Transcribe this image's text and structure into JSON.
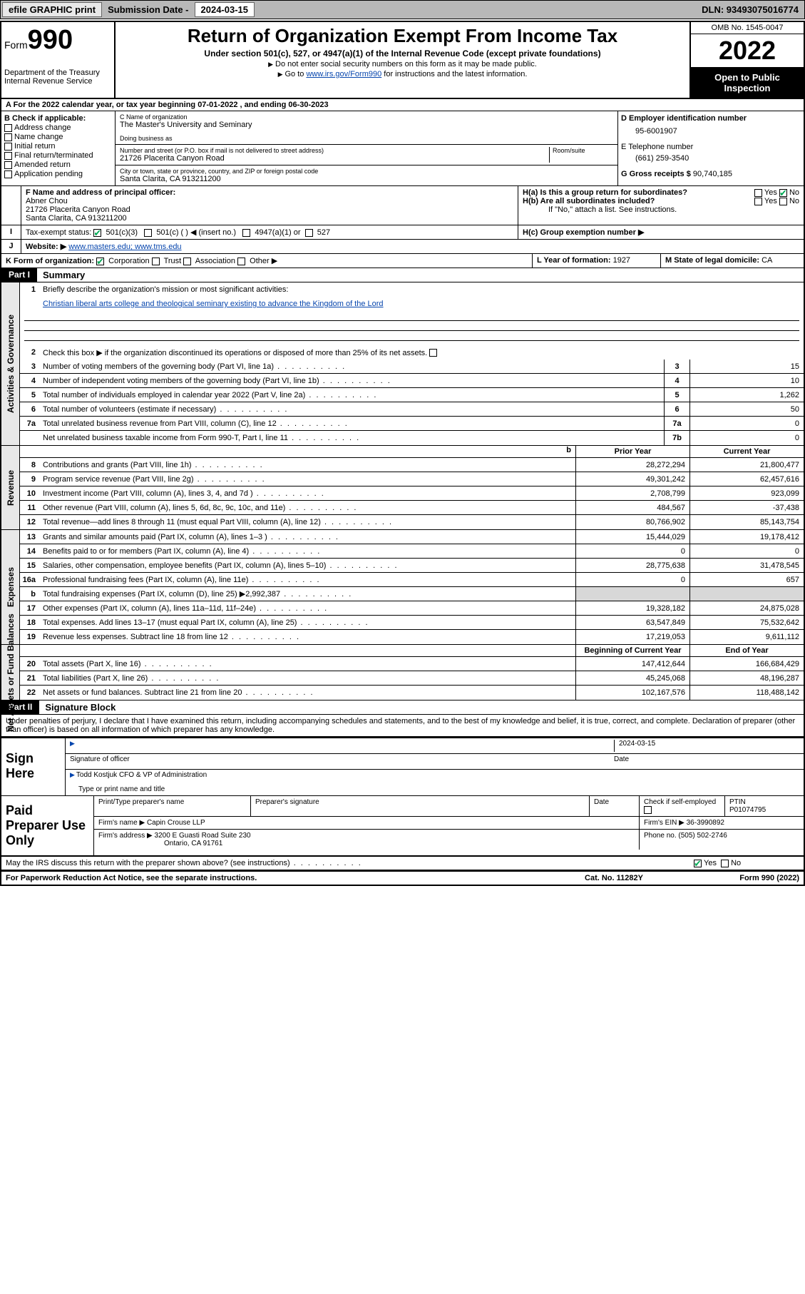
{
  "topbar": {
    "efile": "efile GRAPHIC print",
    "sub_label": "Submission Date - ",
    "sub_date": "2024-03-15",
    "dln": "DLN: 93493075016774"
  },
  "header": {
    "form_word": "Form",
    "form_num": "990",
    "dept": "Department of the Treasury",
    "irs": "Internal Revenue Service",
    "title": "Return of Organization Exempt From Income Tax",
    "subtitle": "Under section 501(c), 527, or 4947(a)(1) of the Internal Revenue Code (except private foundations)",
    "instr1": "Do not enter social security numbers on this form as it may be made public.",
    "instr2_pre": "Go to ",
    "instr2_link": "www.irs.gov/Form990",
    "instr2_post": " for instructions and the latest information.",
    "omb": "OMB No. 1545-0047",
    "year": "2022",
    "open": "Open to Public Inspection"
  },
  "rowA": "A For the 2022 calendar year, or tax year beginning 07-01-2022    , and ending 06-30-2023",
  "B": {
    "hdr": "B Check if applicable:",
    "items": [
      "Address change",
      "Name change",
      "Initial return",
      "Final return/terminated",
      "Amended return",
      "Application pending"
    ]
  },
  "C": {
    "name_lbl": "C Name of organization",
    "name": "The Master's University and Seminary",
    "dba_lbl": "Doing business as",
    "street_lbl": "Number and street (or P.O. box if mail is not delivered to street address)",
    "room_lbl": "Room/suite",
    "street": "21726 Placerita Canyon Road",
    "city_lbl": "City or town, state or province, country, and ZIP or foreign postal code",
    "city": "Santa Clarita, CA  913211200"
  },
  "D": {
    "lbl": "D Employer identification number",
    "val": "95-6001907"
  },
  "E": {
    "lbl": "E Telephone number",
    "val": "(661) 259-3540"
  },
  "G": {
    "lbl": "G Gross receipts $",
    "val": "90,740,185"
  },
  "F": {
    "lbl": "F  Name and address of principal officer:",
    "name": "Abner Chou",
    "addr1": "21726 Placerita Canyon Road",
    "addr2": "Santa Clarita, CA  913211200"
  },
  "H": {
    "a": "H(a)  Is this a group return for subordinates?",
    "b": "H(b)  Are all subordinates included?",
    "b_note": "If \"No,\" attach a list. See instructions.",
    "c": "H(c)  Group exemption number ▶",
    "yes": "Yes",
    "no": "No"
  },
  "I": {
    "lbl": "Tax-exempt status:",
    "o1": "501(c)(3)",
    "o2": "501(c) (  ) ◀ (insert no.)",
    "o3": "4947(a)(1) or",
    "o4": "527"
  },
  "J": {
    "lbl": "Website: ▶",
    "val": "www.masters.edu; www.tms.edu"
  },
  "K": {
    "lbl": "K Form of organization:",
    "o1": "Corporation",
    "o2": "Trust",
    "o3": "Association",
    "o4": "Other ▶"
  },
  "L": {
    "lbl": "L Year of formation:",
    "val": "1927"
  },
  "M": {
    "lbl": "M State of legal domicile:",
    "val": "CA"
  },
  "part1": {
    "hdr": "Part I",
    "title": "Summary",
    "l1_lbl": "Briefly describe the organization's mission or most significant activities:",
    "l1_txt": "Christian liberal arts college and theological seminary existing to advance the Kingdom of the Lord",
    "l2": "Check this box ▶        if the organization discontinued its operations or disposed of more than 25% of its net assets.",
    "rows_ag": [
      {
        "n": "3",
        "t": "Number of voting members of the governing body (Part VI, line 1a)",
        "b": "3",
        "v": "15"
      },
      {
        "n": "4",
        "t": "Number of independent voting members of the governing body (Part VI, line 1b)",
        "b": "4",
        "v": "10"
      },
      {
        "n": "5",
        "t": "Total number of individuals employed in calendar year 2022 (Part V, line 2a)",
        "b": "5",
        "v": "1,262"
      },
      {
        "n": "6",
        "t": "Total number of volunteers (estimate if necessary)",
        "b": "6",
        "v": "50"
      },
      {
        "n": "7a",
        "t": "Total unrelated business revenue from Part VIII, column (C), line 12",
        "b": "7a",
        "v": "0"
      },
      {
        "n": "",
        "t": "Net unrelated business taxable income from Form 990-T, Part I, line 11",
        "b": "7b",
        "v": "0"
      }
    ],
    "col_py": "Prior Year",
    "col_cy": "Current Year",
    "rev": [
      {
        "n": "8",
        "t": "Contributions and grants (Part VIII, line 1h)",
        "p": "28,272,294",
        "c": "21,800,477"
      },
      {
        "n": "9",
        "t": "Program service revenue (Part VIII, line 2g)",
        "p": "49,301,242",
        "c": "62,457,616"
      },
      {
        "n": "10",
        "t": "Investment income (Part VIII, column (A), lines 3, 4, and 7d )",
        "p": "2,708,799",
        "c": "923,099"
      },
      {
        "n": "11",
        "t": "Other revenue (Part VIII, column (A), lines 5, 6d, 8c, 9c, 10c, and 11e)",
        "p": "484,567",
        "c": "-37,438"
      },
      {
        "n": "12",
        "t": "Total revenue—add lines 8 through 11 (must equal Part VIII, column (A), line 12)",
        "p": "80,766,902",
        "c": "85,143,754"
      }
    ],
    "exp": [
      {
        "n": "13",
        "t": "Grants and similar amounts paid (Part IX, column (A), lines 1–3 )",
        "p": "15,444,029",
        "c": "19,178,412"
      },
      {
        "n": "14",
        "t": "Benefits paid to or for members (Part IX, column (A), line 4)",
        "p": "0",
        "c": "0"
      },
      {
        "n": "15",
        "t": "Salaries, other compensation, employee benefits (Part IX, column (A), lines 5–10)",
        "p": "28,775,638",
        "c": "31,478,545"
      },
      {
        "n": "16a",
        "t": "Professional fundraising fees (Part IX, column (A), line 11e)",
        "p": "0",
        "c": "657"
      },
      {
        "n": "b",
        "t": "Total fundraising expenses (Part IX, column (D), line 25) ▶2,992,387",
        "p": "",
        "c": "",
        "shade": true
      },
      {
        "n": "17",
        "t": "Other expenses (Part IX, column (A), lines 11a–11d, 11f–24e)",
        "p": "19,328,182",
        "c": "24,875,028"
      },
      {
        "n": "18",
        "t": "Total expenses. Add lines 13–17 (must equal Part IX, column (A), line 25)",
        "p": "63,547,849",
        "c": "75,532,642"
      },
      {
        "n": "19",
        "t": "Revenue less expenses. Subtract line 18 from line 12",
        "p": "17,219,053",
        "c": "9,611,112"
      }
    ],
    "col_by": "Beginning of Current Year",
    "col_ey": "End of Year",
    "na": [
      {
        "n": "20",
        "t": "Total assets (Part X, line 16)",
        "p": "147,412,644",
        "c": "166,684,429"
      },
      {
        "n": "21",
        "t": "Total liabilities (Part X, line 26)",
        "p": "45,245,068",
        "c": "48,196,287"
      },
      {
        "n": "22",
        "t": "Net assets or fund balances. Subtract line 21 from line 20",
        "p": "102,167,576",
        "c": "118,488,142"
      }
    ],
    "vtab_ag": "Activities & Governance",
    "vtab_rev": "Revenue",
    "vtab_exp": "Expenses",
    "vtab_na": "Net Assets or Fund Balances"
  },
  "part2": {
    "hdr": "Part II",
    "title": "Signature Block",
    "perjury": "Under penalties of perjury, I declare that I have examined this return, including accompanying schedules and statements, and to the best of my knowledge and belief, it is true, correct, and complete. Declaration of preparer (other than officer) is based on all information of which preparer has any knowledge.",
    "sign_here": "Sign Here",
    "sig_officer": "Signature of officer",
    "sig_date": "2024-03-15",
    "date_lbl": "Date",
    "officer_name": "Todd Kostjuk  CFO & VP of Administration",
    "type_name_lbl": "Type or print name and title",
    "paid": "Paid Preparer Use Only",
    "pt_name_lbl": "Print/Type preparer's name",
    "prep_sig_lbl": "Preparer's signature",
    "check_self": "Check         if self-employed",
    "ptin_lbl": "PTIN",
    "ptin": "P01074795",
    "firm_name_lbl": "Firm's name    ▶",
    "firm_name": "Capin Crouse LLP",
    "firm_ein_lbl": "Firm's EIN ▶",
    "firm_ein": "36-3990892",
    "firm_addr_lbl": "Firm's address ▶",
    "firm_addr1": "3200 E Guasti Road Suite 230",
    "firm_addr2": "Ontario, CA  91761",
    "phone_lbl": "Phone no.",
    "phone": "(505) 502-2746",
    "discuss": "May the IRS discuss this return with the preparer shown above? (see instructions)"
  },
  "footer": {
    "pra": "For Paperwork Reduction Act Notice, see the separate instructions.",
    "cat": "Cat. No. 11282Y",
    "form": "Form 990 (2022)"
  }
}
